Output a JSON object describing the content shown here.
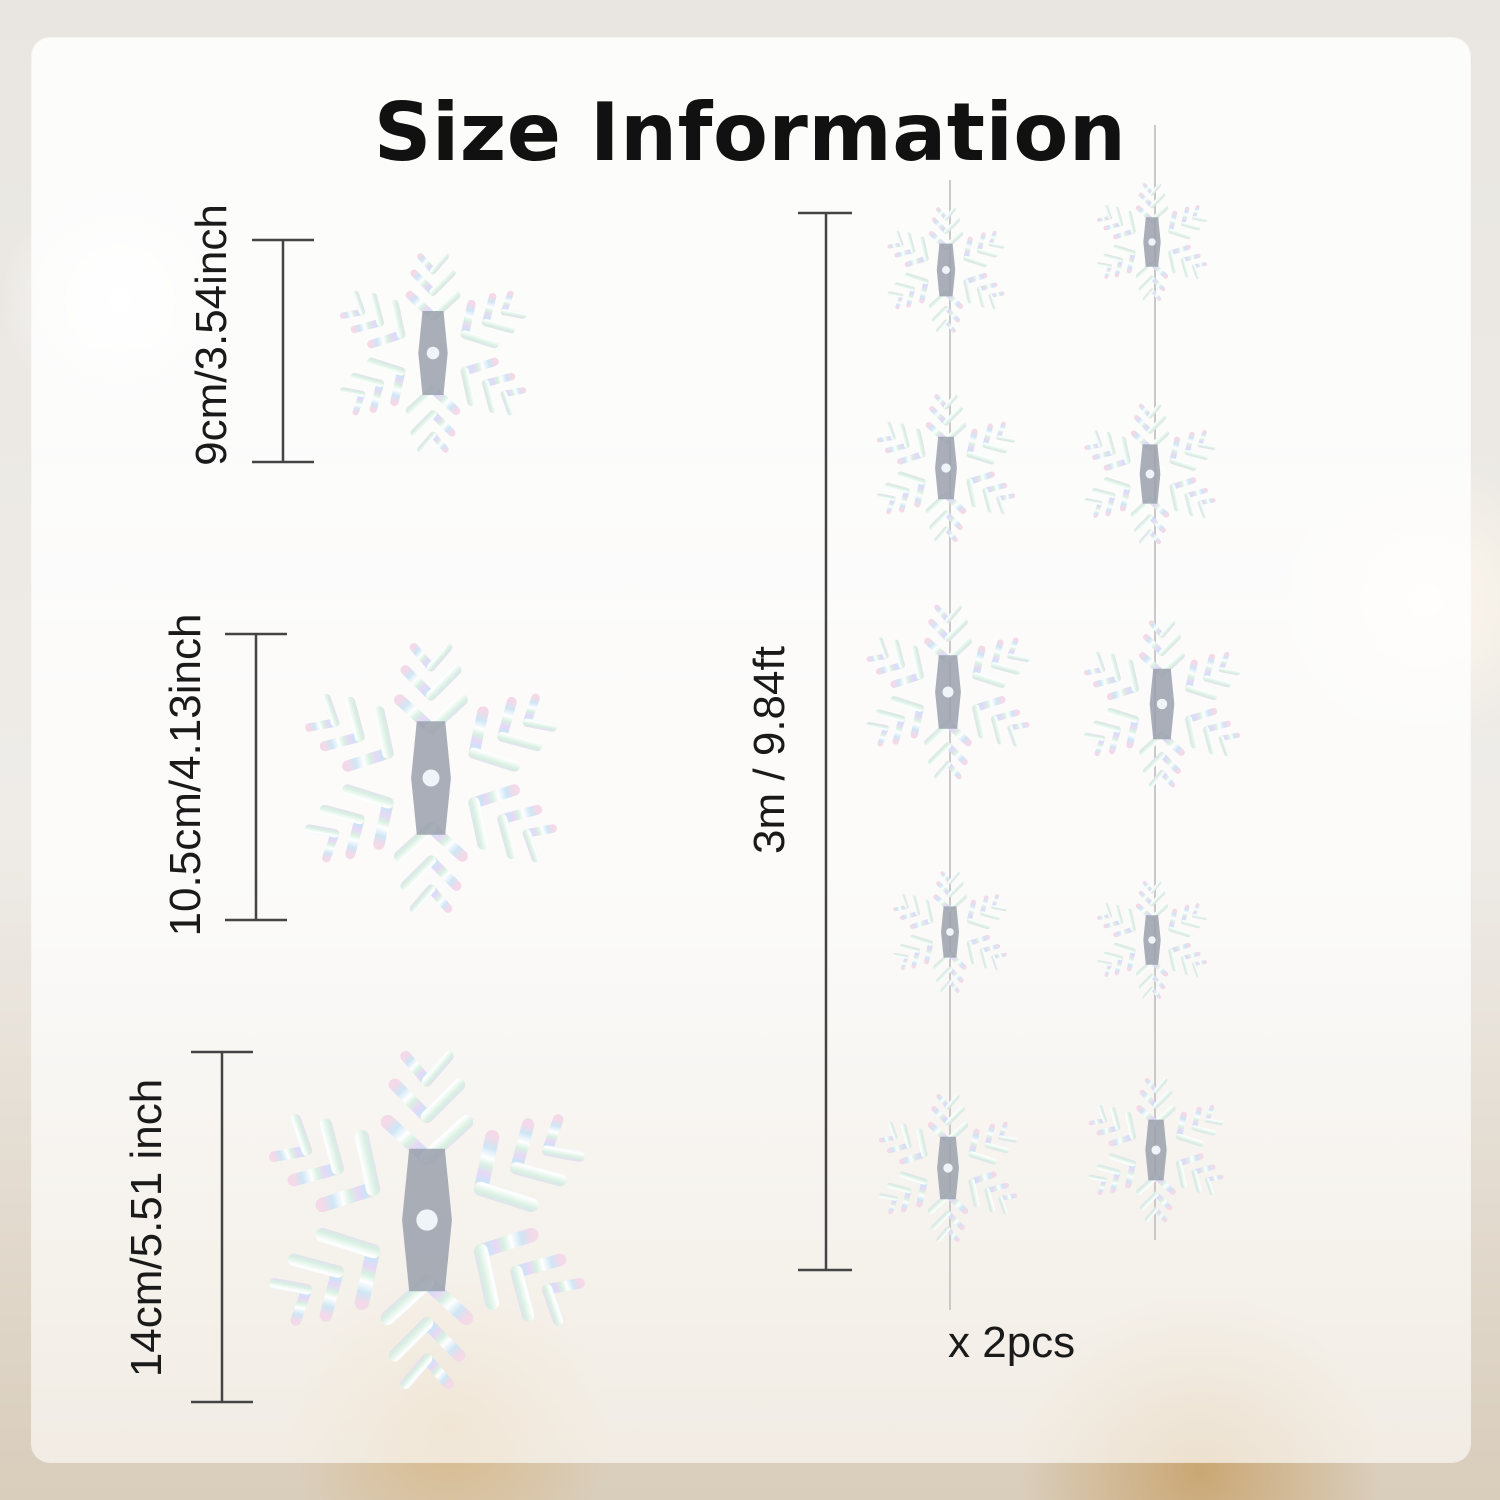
{
  "title": "Size Information",
  "sizes": [
    {
      "label": "9cm/3.54inch"
    },
    {
      "label": "10.5cm/4.13inch"
    },
    {
      "label": "14cm/5.51 inch"
    }
  ],
  "garland": {
    "length_label": "3m / 9.84ft",
    "count_label": "x 2pcs"
  },
  "colors": {
    "text": "#111111",
    "snowflake": "iridescent-silver"
  }
}
